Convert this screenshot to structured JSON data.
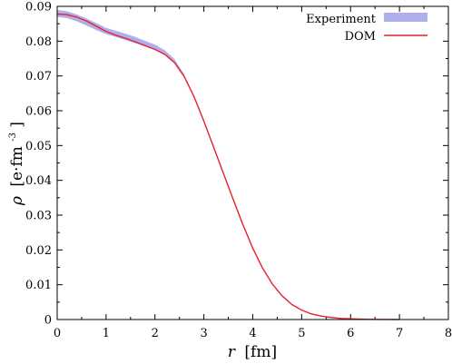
{
  "chart_data": {
    "type": "line",
    "xlabel": {
      "symbol": "r",
      "unit": "[fm]"
    },
    "ylabel": {
      "symbol": "ρ",
      "unit": "[e·fm",
      "exp": "-3",
      "close": "]"
    },
    "xlim": [
      0,
      8
    ],
    "ylim": [
      0,
      0.09
    ],
    "xticks": [
      0,
      1,
      2,
      3,
      4,
      5,
      6,
      7,
      8
    ],
    "yticks": [
      0,
      0.01,
      0.02,
      0.03,
      0.04,
      0.05,
      0.06,
      0.07,
      0.08,
      0.09
    ],
    "grid": false,
    "legend_position": "top-right",
    "series": [
      {
        "name": "Experiment",
        "style": "band",
        "color": "#aeb0ee",
        "x": [
          0,
          0.2,
          0.4,
          0.6,
          0.8,
          1.0,
          1.2,
          1.4,
          1.6,
          1.8,
          2.0,
          2.2,
          2.4,
          2.6
        ],
        "lower": [
          0.087,
          0.0866,
          0.0857,
          0.0845,
          0.0832,
          0.082,
          0.0812,
          0.0803,
          0.0794,
          0.0785,
          0.0776,
          0.0762,
          0.0738,
          0.0695
        ],
        "upper": [
          0.089,
          0.0886,
          0.0877,
          0.0865,
          0.0852,
          0.0838,
          0.083,
          0.0821,
          0.0812,
          0.0801,
          0.079,
          0.0774,
          0.0748,
          0.0704
        ]
      },
      {
        "name": "DOM",
        "style": "line",
        "color": "#e8202a",
        "x": [
          0,
          0.2,
          0.4,
          0.6,
          0.8,
          1.0,
          1.2,
          1.4,
          1.6,
          1.8,
          2.0,
          2.2,
          2.4,
          2.6,
          2.8,
          3.0,
          3.2,
          3.4,
          3.6,
          3.8,
          4.0,
          4.2,
          4.4,
          4.6,
          4.8,
          5.0,
          5.2,
          5.4,
          5.6,
          5.8,
          6.0,
          6.2,
          6.4,
          6.6,
          6.8,
          7.0
        ],
        "y": [
          0.0878,
          0.0876,
          0.0869,
          0.0858,
          0.0843,
          0.0828,
          0.0817,
          0.0808,
          0.0798,
          0.0787,
          0.0776,
          0.0762,
          0.0738,
          0.0698,
          0.064,
          0.057,
          0.0495,
          0.042,
          0.0345,
          0.0272,
          0.0205,
          0.0148,
          0.0102,
          0.0068,
          0.0043,
          0.0027,
          0.0016,
          0.001,
          0.0006,
          0.0003,
          0.0002,
          0.0001,
          5e-05,
          2e-05,
          1e-05,
          0.0
        ]
      }
    ]
  }
}
